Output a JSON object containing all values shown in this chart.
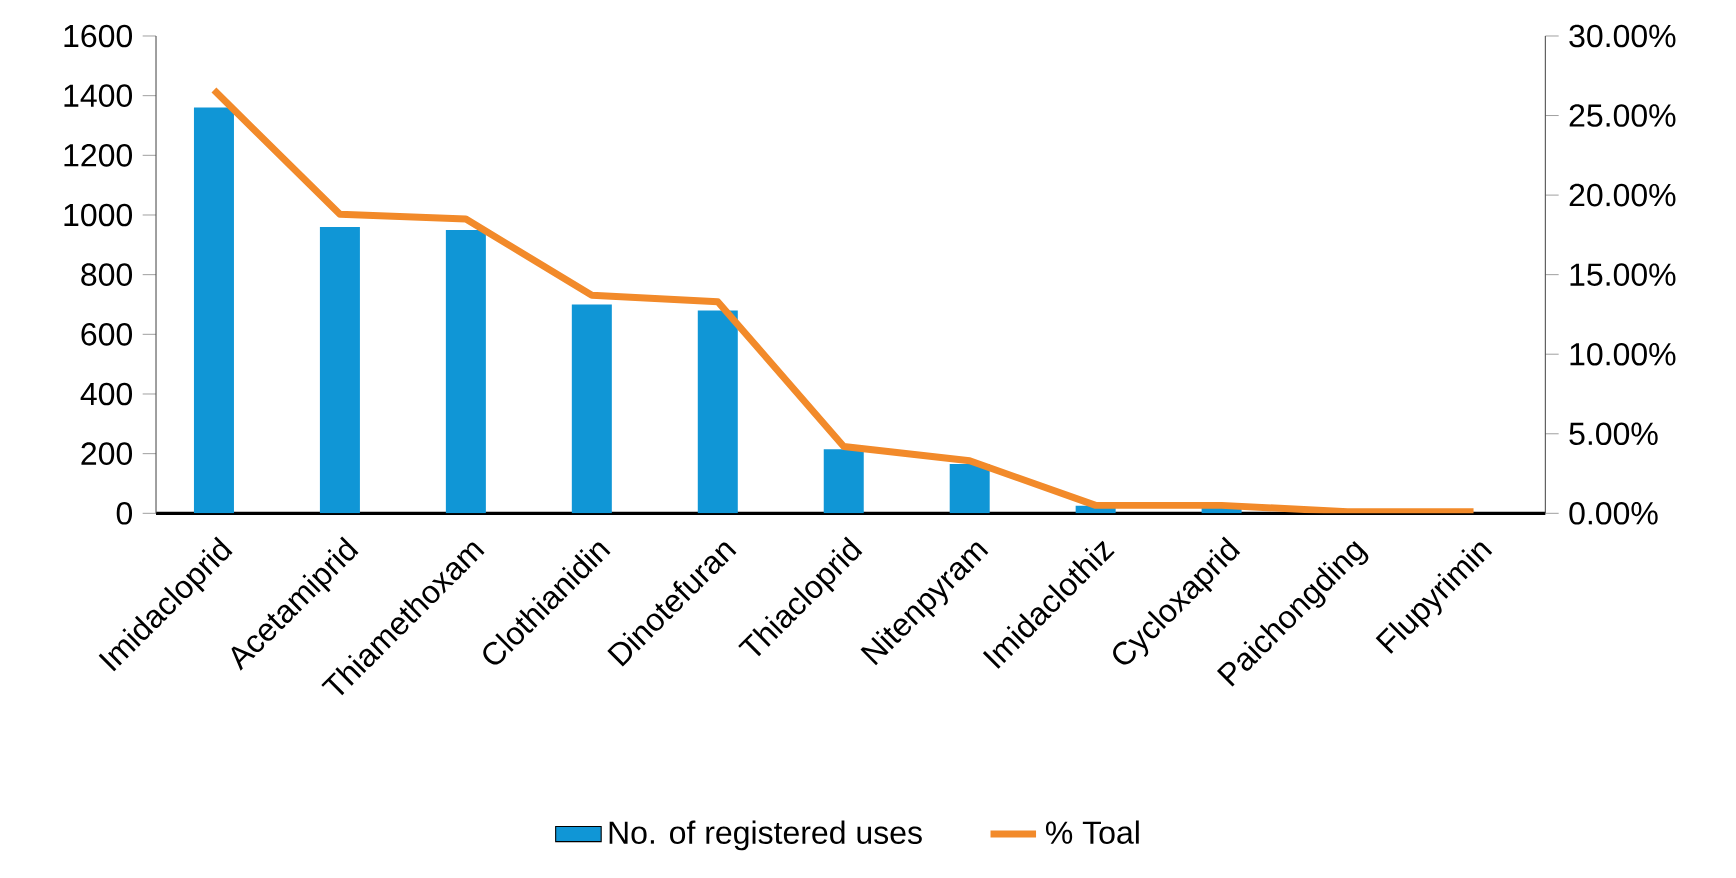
{
  "chart_data": {
    "type": "bar",
    "categories": [
      "Imidacloprid",
      "Acetamiprid",
      "Thiamethoxam",
      "Clothianidin",
      "Dinotefuran",
      "Thiacloprid",
      "Nitenpyram",
      "Imidaclothiz",
      "Cycloxaprid",
      "Paichongding",
      "Flupyrimin"
    ],
    "series": [
      {
        "name": "No. of registered uses",
        "color": "#1096d6",
        "values": [
          1360,
          960,
          950,
          700,
          680,
          215,
          165,
          25,
          25,
          null,
          null
        ]
      },
      {
        "name": "% Toal",
        "type": "line",
        "axis": "y2",
        "color": "#f28a2a",
        "values": [
          26.6,
          18.8,
          18.5,
          13.7,
          13.3,
          4.2,
          3.3,
          0.5,
          0.5,
          0.1,
          0.1
        ]
      }
    ],
    "ylim": [
      0,
      1600
    ],
    "yticks": [
      0,
      200,
      400,
      600,
      800,
      1000,
      1200,
      1400,
      1600
    ],
    "y2lim": [
      0,
      30
    ],
    "y2ticks": [
      {
        "value": 0,
        "label": "0.00%"
      },
      {
        "value": 5,
        "label": "5.00%"
      },
      {
        "value": 10,
        "label": "10.00%"
      },
      {
        "value": 15,
        "label": "15.00%"
      },
      {
        "value": 20,
        "label": "20.00%"
      },
      {
        "value": 25,
        "label": "25.00%"
      },
      {
        "value": 30,
        "label": "30.00%"
      }
    ],
    "legend": "bottom",
    "grid": false,
    "marker": "none"
  }
}
